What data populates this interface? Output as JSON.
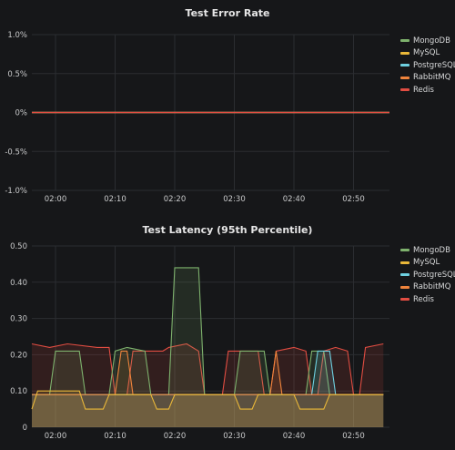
{
  "panels": [
    {
      "title": "Test Error Rate",
      "legend": [
        {
          "label": "MongoDB",
          "color": "#7eb26d"
        },
        {
          "label": "MySQL",
          "color": "#eab839"
        },
        {
          "label": "PostgreSQL",
          "color": "#6ed0e0"
        },
        {
          "label": "RabbitMQ",
          "color": "#ef843c"
        },
        {
          "label": "Redis",
          "color": "#e24d42"
        }
      ]
    },
    {
      "title": "Test Latency (95th Percentile)",
      "legend": [
        {
          "label": "MongoDB",
          "color": "#7eb26d"
        },
        {
          "label": "MySQL",
          "color": "#eab839"
        },
        {
          "label": "PostgreSQL",
          "color": "#6ed0e0"
        },
        {
          "label": "RabbitMQ",
          "color": "#ef843c"
        },
        {
          "label": "Redis",
          "color": "#e24d42"
        }
      ]
    }
  ],
  "chart_data": [
    {
      "type": "line",
      "title": "Test Error Rate",
      "x_ticks": [
        "02:00",
        "02:10",
        "02:20",
        "02:30",
        "02:40",
        "02:50"
      ],
      "y_ticks": [
        "1.0%",
        "0.5%",
        "0%",
        "-0.5%",
        "-1.0%"
      ],
      "ylim": [
        -1.0,
        1.0
      ],
      "series": [
        {
          "name": "MongoDB",
          "values": [
            0,
            0
          ]
        },
        {
          "name": "MySQL",
          "values": [
            0,
            0
          ]
        },
        {
          "name": "PostgreSQL",
          "values": [
            0,
            0
          ]
        },
        {
          "name": "RabbitMQ",
          "values": [
            0,
            0
          ]
        },
        {
          "name": "Redis",
          "values": [
            0,
            0
          ]
        }
      ]
    },
    {
      "type": "area",
      "title": "Test Latency (95th Percentile)",
      "x_ticks": [
        "02:00",
        "02:10",
        "02:20",
        "02:30",
        "02:40",
        "02:50"
      ],
      "y_ticks": [
        "0.50",
        "0.40",
        "0.30",
        "0.20",
        "0.10",
        "0"
      ],
      "ylim": [
        0,
        0.5
      ],
      "x_range_min": [
        -4,
        55
      ],
      "series": [
        {
          "name": "Redis",
          "color": "#e24d42",
          "points": [
            [
              -4,
              0.23
            ],
            [
              -1,
              0.22
            ],
            [
              2,
              0.23
            ],
            [
              7,
              0.22
            ],
            [
              9,
              0.22
            ],
            [
              10,
              0.09
            ],
            [
              12,
              0.09
            ],
            [
              13,
              0.21
            ],
            [
              18,
              0.21
            ],
            [
              19,
              0.22
            ],
            [
              22,
              0.23
            ],
            [
              24,
              0.21
            ],
            [
              25,
              0.09
            ],
            [
              28,
              0.09
            ],
            [
              29,
              0.21
            ],
            [
              34,
              0.21
            ],
            [
              35,
              0.09
            ],
            [
              36,
              0.09
            ],
            [
              37,
              0.21
            ],
            [
              40,
              0.22
            ],
            [
              42,
              0.21
            ],
            [
              43,
              0.09
            ],
            [
              44,
              0.09
            ],
            [
              45,
              0.21
            ],
            [
              47,
              0.22
            ],
            [
              49,
              0.21
            ],
            [
              50,
              0.09
            ],
            [
              51,
              0.09
            ],
            [
              52,
              0.22
            ],
            [
              55,
              0.23
            ]
          ]
        },
        {
          "name": "MongoDB",
          "color": "#7eb26d",
          "points": [
            [
              -4,
              0.09
            ],
            [
              -1,
              0.09
            ],
            [
              0,
              0.21
            ],
            [
              4,
              0.21
            ],
            [
              5,
              0.09
            ],
            [
              9,
              0.09
            ],
            [
              10,
              0.21
            ],
            [
              12,
              0.22
            ],
            [
              15,
              0.21
            ],
            [
              16,
              0.09
            ],
            [
              19,
              0.09
            ],
            [
              20,
              0.44
            ],
            [
              24,
              0.44
            ],
            [
              25,
              0.09
            ],
            [
              30,
              0.09
            ],
            [
              31,
              0.21
            ],
            [
              35,
              0.21
            ],
            [
              36,
              0.09
            ],
            [
              42,
              0.09
            ],
            [
              43,
              0.21
            ],
            [
              45,
              0.21
            ],
            [
              46,
              0.09
            ],
            [
              55,
              0.09
            ]
          ]
        },
        {
          "name": "PostgreSQL",
          "color": "#6ed0e0",
          "points": [
            [
              -4,
              0.09
            ],
            [
              43,
              0.09
            ],
            [
              44,
              0.21
            ],
            [
              46,
              0.21
            ],
            [
              47,
              0.09
            ],
            [
              55,
              0.09
            ]
          ]
        },
        {
          "name": "RabbitMQ",
          "color": "#ef843c",
          "points": [
            [
              -4,
              0.09
            ],
            [
              10,
              0.09
            ],
            [
              11,
              0.21
            ],
            [
              12,
              0.21
            ],
            [
              13,
              0.09
            ],
            [
              36,
              0.09
            ],
            [
              37,
              0.21
            ],
            [
              38,
              0.09
            ],
            [
              55,
              0.09
            ]
          ]
        },
        {
          "name": "MySQL",
          "color": "#eab839",
          "points": [
            [
              -4,
              0.05
            ],
            [
              -3,
              0.1
            ],
            [
              4,
              0.1
            ],
            [
              5,
              0.05
            ],
            [
              8,
              0.05
            ],
            [
              9,
              0.09
            ],
            [
              16,
              0.09
            ],
            [
              17,
              0.05
            ],
            [
              19,
              0.05
            ],
            [
              20,
              0.09
            ],
            [
              30,
              0.09
            ],
            [
              31,
              0.05
            ],
            [
              33,
              0.05
            ],
            [
              34,
              0.09
            ],
            [
              40,
              0.09
            ],
            [
              41,
              0.05
            ],
            [
              45,
              0.05
            ],
            [
              46,
              0.09
            ],
            [
              55,
              0.09
            ]
          ]
        }
      ]
    }
  ]
}
